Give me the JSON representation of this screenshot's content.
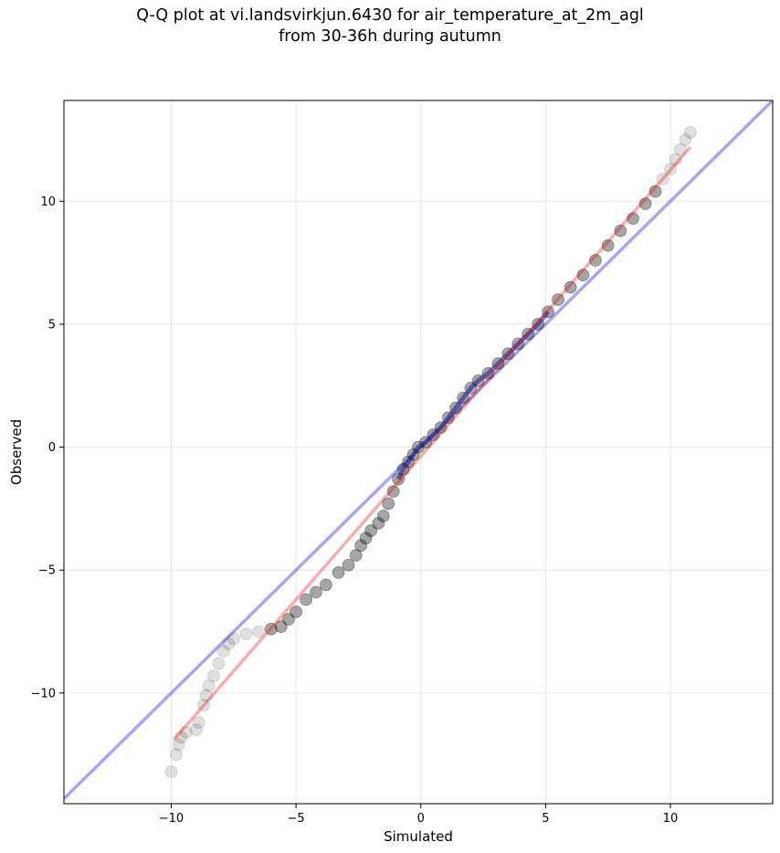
{
  "chart_data": {
    "type": "scatter",
    "title_line1": "Q-Q plot at vi.landsvirkjun.6430 for air_temperature_at_2m_agl",
    "title_line2": "from 30-36h during autumn",
    "xlabel": "Simulated",
    "ylabel": "Observed",
    "xlim": [
      -14.3,
      14.1
    ],
    "ylim": [
      -14.5,
      14.1
    ],
    "xticks": [
      -10,
      -5,
      0,
      5,
      10
    ],
    "yticks": [
      -10,
      -5,
      0,
      5,
      10
    ],
    "xtick_labels": [
      "−10",
      "−5",
      "0",
      "5",
      "10"
    ],
    "ytick_labels": [
      "−10",
      "−5",
      "0",
      "5",
      "10"
    ],
    "grid": true,
    "series": [
      {
        "kind": "quantiles",
        "color": "#000000",
        "points": [
          [
            -10.0,
            -13.2
          ],
          [
            -9.8,
            -12.5
          ],
          [
            -9.7,
            -12.1
          ],
          [
            -9.6,
            -11.8
          ],
          [
            -9.4,
            -11.6
          ],
          [
            -9.0,
            -11.5
          ],
          [
            -8.9,
            -11.2
          ],
          [
            -8.7,
            -10.5
          ],
          [
            -8.6,
            -10.1
          ],
          [
            -8.5,
            -9.7
          ],
          [
            -8.3,
            -9.3
          ],
          [
            -8.1,
            -8.8
          ],
          [
            -7.9,
            -8.3
          ],
          [
            -7.7,
            -8.0
          ],
          [
            -7.5,
            -7.8
          ],
          [
            -7.0,
            -7.6
          ],
          [
            -6.5,
            -7.5
          ],
          [
            -6.0,
            -7.4
          ],
          [
            -5.6,
            -7.3
          ],
          [
            -5.3,
            -7.0
          ],
          [
            -5.0,
            -6.7
          ],
          [
            -4.6,
            -6.2
          ],
          [
            -4.2,
            -5.9
          ],
          [
            -3.8,
            -5.6
          ],
          [
            -3.3,
            -5.1
          ],
          [
            -2.9,
            -4.8
          ],
          [
            -2.6,
            -4.4
          ],
          [
            -2.4,
            -4.0
          ],
          [
            -2.2,
            -3.7
          ],
          [
            -2.0,
            -3.4
          ],
          [
            -1.7,
            -3.1
          ],
          [
            -1.5,
            -2.8
          ],
          [
            -1.3,
            -2.3
          ],
          [
            -1.1,
            -1.8
          ],
          [
            -0.9,
            -1.3
          ],
          [
            -0.7,
            -0.9
          ],
          [
            -0.5,
            -0.6
          ],
          [
            -0.3,
            -0.3
          ],
          [
            -0.1,
            0.0
          ],
          [
            0.2,
            0.2
          ],
          [
            0.5,
            0.5
          ],
          [
            0.8,
            0.8
          ],
          [
            1.1,
            1.2
          ],
          [
            1.4,
            1.6
          ],
          [
            1.7,
            2.0
          ],
          [
            2.0,
            2.4
          ],
          [
            2.3,
            2.7
          ],
          [
            2.7,
            3.0
          ],
          [
            3.1,
            3.4
          ],
          [
            3.5,
            3.8
          ],
          [
            3.9,
            4.2
          ],
          [
            4.3,
            4.6
          ],
          [
            4.7,
            5.0
          ],
          [
            5.1,
            5.5
          ],
          [
            5.5,
            6.0
          ],
          [
            6.0,
            6.5
          ],
          [
            6.5,
            7.0
          ],
          [
            7.0,
            7.6
          ],
          [
            7.5,
            8.2
          ],
          [
            8.0,
            8.8
          ],
          [
            8.5,
            9.3
          ],
          [
            9.0,
            9.9
          ],
          [
            9.4,
            10.4
          ],
          [
            9.7,
            10.9
          ],
          [
            10.0,
            11.3
          ],
          [
            10.2,
            11.7
          ],
          [
            10.4,
            12.1
          ],
          [
            10.6,
            12.5
          ],
          [
            10.8,
            12.8
          ]
        ]
      },
      {
        "kind": "identity line",
        "color": "#0000ee",
        "x": [
          -14.3,
          14.1
        ],
        "y": [
          -14.3,
          14.1
        ]
      },
      {
        "kind": "fit line",
        "color": "#ee0000",
        "x": [
          -9.9,
          10.8
        ],
        "y": [
          -11.9,
          12.2
        ]
      }
    ]
  }
}
